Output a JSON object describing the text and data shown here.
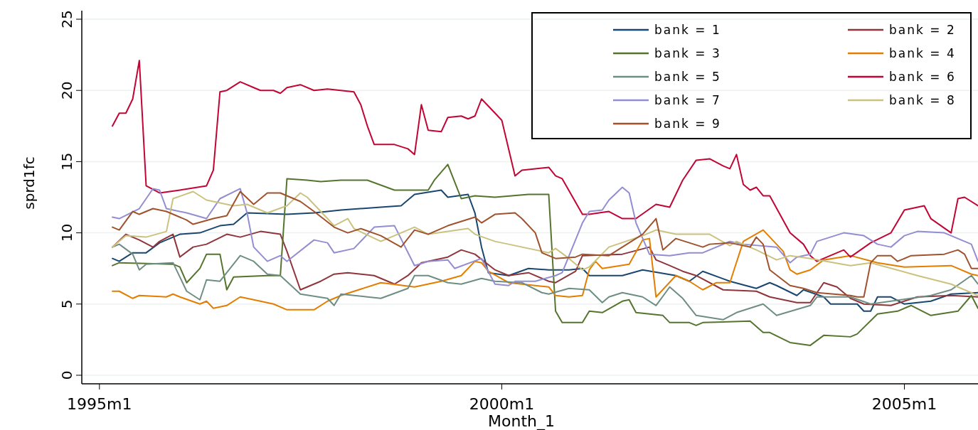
{
  "chart_data": {
    "type": "line",
    "xlabel": "Month_1",
    "ylabel": "sprd1fc",
    "xlim": [
      "1994-10-13",
      "2005-12"
    ],
    "xticks": [
      {
        "value": "1995-01",
        "label": "1995m1"
      },
      {
        "value": "2000-01",
        "label": "2000m1"
      },
      {
        "value": "2005-01",
        "label": "2005m1"
      }
    ],
    "ylim": [
      -0.6,
      25.6
    ],
    "yticks": [
      0,
      5,
      10,
      15,
      20,
      25
    ],
    "grid": "y",
    "legend": "top right",
    "series": [
      {
        "name": "bank = 1",
        "color": "#1a476f",
        "x": [
          "1995-03",
          "1995-04",
          "1995-06",
          "1995-08",
          "1995-10",
          "1996-01",
          "1996-04",
          "1996-07",
          "1996-09",
          "1996-11",
          "1997-05",
          "1997-09",
          "1998-01",
          "1998-07",
          "1998-10",
          "1998-12",
          "1999-04",
          "1999-05",
          "1999-08",
          "1999-09",
          "1999-10",
          "1999-11",
          "2000-02",
          "2000-05",
          "2000-08",
          "2000-11",
          "2001-01",
          "2001-02",
          "2001-07",
          "2001-10",
          "2002-03",
          "2002-05",
          "2002-07",
          "2002-11",
          "2003-03",
          "2003-05",
          "2003-06",
          "2003-09",
          "2003-10",
          "2004-01",
          "2004-02",
          "2004-06",
          "2004-07",
          "2004-08",
          "2004-09",
          "2004-11",
          "2005-01",
          "2005-05",
          "2005-08",
          "2005-12"
        ],
        "values": [
          8.2,
          8.0,
          8.6,
          8.6,
          9.3,
          9.9,
          10.0,
          10.5,
          10.6,
          11.4,
          11.3,
          11.4,
          11.6,
          11.8,
          11.9,
          12.7,
          13.0,
          12.5,
          12.7,
          11.4,
          9.0,
          7.2,
          7.0,
          7.5,
          7.4,
          7.4,
          7.5,
          7.0,
          7.0,
          7.4,
          7.0,
          6.6,
          7.3,
          6.6,
          6.1,
          6.5,
          6.3,
          5.6,
          6.0,
          5.5,
          5.0,
          5.0,
          4.5,
          4.5,
          5.5,
          5.5,
          5.0,
          5.2,
          5.7,
          5.8
        ]
      },
      {
        "name": "bank = 2",
        "color": "#90353b",
        "x": [
          "1995-03",
          "1995-05",
          "1995-07",
          "1995-09",
          "1995-10",
          "1995-12",
          "1996-01",
          "1996-03",
          "1996-05",
          "1996-08",
          "1996-10",
          "1997-01",
          "1997-04",
          "1997-05",
          "1997-07",
          "1997-10",
          "1997-12",
          "1998-02",
          "1998-06",
          "1998-09",
          "1998-11",
          "1999-01",
          "1999-05",
          "1999-07",
          "1999-09",
          "1999-12",
          "2000-02",
          "2000-05",
          "2000-08",
          "2000-09",
          "2000-12",
          "2001-01",
          "2001-07",
          "2001-11",
          "2001-12",
          "2002-02",
          "2002-04",
          "2002-06",
          "2002-10",
          "2003-03",
          "2003-05",
          "2003-09",
          "2003-11",
          "2004-01",
          "2004-03",
          "2004-05",
          "2004-07",
          "2004-11",
          "2005-03",
          "2005-08",
          "2005-12"
        ],
        "values": [
          9.0,
          9.9,
          9.5,
          9.0,
          9.4,
          9.9,
          8.3,
          9.0,
          9.2,
          9.9,
          9.7,
          10.1,
          9.9,
          8.7,
          6.0,
          6.6,
          7.1,
          7.2,
          7.0,
          6.4,
          7.0,
          7.9,
          8.3,
          8.8,
          8.5,
          7.4,
          7.0,
          7.2,
          6.6,
          6.5,
          7.3,
          8.4,
          8.5,
          9.0,
          8.1,
          7.7,
          7.3,
          7.0,
          6.0,
          5.9,
          5.5,
          5.1,
          5.1,
          6.5,
          6.2,
          5.4,
          5.0,
          4.9,
          5.5,
          5.6,
          5.5
        ]
      },
      {
        "name": "bank = 3",
        "color": "#55752f",
        "x": [
          "1995-03",
          "1995-04",
          "1995-12",
          "1996-01",
          "1996-02",
          "1996-04",
          "1996-05",
          "1996-07",
          "1996-08",
          "1996-09",
          "1997-02",
          "1997-04",
          "1997-05",
          "1997-08",
          "1997-10",
          "1998-01",
          "1998-05",
          "1998-09",
          "1999-02",
          "1999-03",
          "1999-05",
          "1999-07",
          "1999-09",
          "1999-12",
          "2000-05",
          "2000-08",
          "2000-09",
          "2000-10",
          "2001-01",
          "2001-02",
          "2001-04",
          "2001-07",
          "2001-08",
          "2001-09",
          "2002-01",
          "2002-02",
          "2002-05",
          "2002-06",
          "2002-07",
          "2003-02",
          "2003-04",
          "2003-05",
          "2003-08",
          "2003-11",
          "2004-01",
          "2004-05",
          "2004-06",
          "2004-09",
          "2004-12",
          "2005-02",
          "2005-05",
          "2005-09",
          "2005-11",
          "2005-12"
        ],
        "values": [
          7.7,
          7.9,
          7.8,
          7.6,
          6.5,
          7.5,
          8.5,
          8.5,
          6.0,
          6.9,
          7.0,
          7.0,
          13.8,
          13.7,
          13.6,
          13.7,
          13.7,
          13.0,
          13.0,
          13.7,
          14.8,
          12.4,
          12.6,
          12.5,
          12.7,
          12.7,
          4.5,
          3.7,
          3.7,
          4.5,
          4.4,
          5.2,
          5.3,
          4.4,
          4.2,
          3.7,
          3.7,
          3.5,
          3.7,
          3.8,
          3.0,
          3.0,
          2.3,
          2.1,
          2.8,
          2.7,
          2.9,
          4.3,
          4.5,
          4.9,
          4.2,
          4.5,
          5.6,
          4.7
        ]
      },
      {
        "name": "bank = 4",
        "color": "#e37e00",
        "x": [
          "1995-03",
          "1995-04",
          "1995-06",
          "1995-07",
          "1995-11",
          "1995-12",
          "1996-01",
          "1996-04",
          "1996-05",
          "1996-06",
          "1996-08",
          "1996-10",
          "1996-12",
          "1997-03",
          "1997-05",
          "1997-09",
          "1997-11",
          "1998-01",
          "1998-07",
          "1998-12",
          "1999-04",
          "1999-07",
          "1999-09",
          "1999-10",
          "1999-11",
          "2000-02",
          "2000-08",
          "2000-09",
          "2000-11",
          "2001-01",
          "2001-02",
          "2001-03",
          "2001-04",
          "2001-08",
          "2001-10",
          "2001-11",
          "2001-12",
          "2002-03",
          "2002-05",
          "2002-07",
          "2002-09",
          "2002-11",
          "2003-01",
          "2003-04",
          "2003-07",
          "2003-08",
          "2003-09",
          "2003-11",
          "2004-01",
          "2004-05",
          "2004-09",
          "2005-01",
          "2005-08",
          "2005-11",
          "2005-12"
        ],
        "values": [
          5.9,
          5.9,
          5.4,
          5.6,
          5.5,
          5.7,
          5.5,
          5.0,
          5.2,
          4.7,
          4.9,
          5.5,
          5.3,
          5.0,
          4.6,
          4.6,
          5.2,
          5.6,
          6.5,
          6.2,
          6.6,
          7.0,
          8.0,
          7.9,
          7.3,
          6.5,
          6.2,
          5.6,
          5.5,
          5.6,
          7.4,
          8.0,
          7.5,
          7.8,
          9.5,
          9.6,
          5.5,
          7.0,
          6.6,
          6.0,
          6.5,
          6.5,
          9.4,
          10.2,
          8.7,
          7.4,
          7.1,
          7.4,
          8.1,
          8.4,
          7.9,
          7.6,
          7.7,
          7.1,
          7.0
        ]
      },
      {
        "name": "bank = 5",
        "color": "#6e8e84",
        "x": [
          "1995-03",
          "1995-04",
          "1995-06",
          "1995-07",
          "1995-08",
          "1995-12",
          "1996-02",
          "1996-04",
          "1996-05",
          "1996-07",
          "1996-10",
          "1996-12",
          "1997-02",
          "1997-04",
          "1997-07",
          "1997-11",
          "1997-12",
          "1998-01",
          "1998-05",
          "1998-07",
          "1998-11",
          "1998-12",
          "1999-02",
          "1999-05",
          "1999-07",
          "1999-10",
          "1999-12",
          "2000-04",
          "2000-07",
          "2000-08",
          "2000-11",
          "2001-02",
          "2001-04",
          "2001-05",
          "2001-07",
          "2001-10",
          "2001-12",
          "2002-02",
          "2002-04",
          "2002-06",
          "2002-10",
          "2002-12",
          "2003-04",
          "2003-06",
          "2003-11",
          "2003-12",
          "2004-05",
          "2004-08",
          "2005-05",
          "2005-08",
          "2005-11",
          "2005-12"
        ],
        "values": [
          9.0,
          9.2,
          8.5,
          7.4,
          7.8,
          7.9,
          5.9,
          5.3,
          6.7,
          6.6,
          8.4,
          8.0,
          7.1,
          7.0,
          5.7,
          5.4,
          4.9,
          5.7,
          5.5,
          5.4,
          6.1,
          7.0,
          7.0,
          6.5,
          6.4,
          6.8,
          6.6,
          6.5,
          5.8,
          5.7,
          6.1,
          6.0,
          5.1,
          5.5,
          5.8,
          5.5,
          4.9,
          6.2,
          5.4,
          4.2,
          3.9,
          4.4,
          5.0,
          4.2,
          4.9,
          5.5,
          5.5,
          5.0,
          5.6,
          6.0,
          7.0,
          6.4
        ]
      },
      {
        "name": "bank = 6",
        "color": "#c10534",
        "x": [
          "1995-03",
          "1995-04",
          "1995-05",
          "1995-06",
          "1995-07",
          "1995-08",
          "1995-10",
          "1996-01",
          "1996-05",
          "1996-06",
          "1996-07",
          "1996-08",
          "1996-10",
          "1996-12",
          "1997-01",
          "1997-03",
          "1997-04",
          "1997-05",
          "1997-07",
          "1997-09",
          "1997-11",
          "1998-03",
          "1998-04",
          "1998-05",
          "1998-06",
          "1998-09",
          "1998-11",
          "1998-12",
          "1999-01",
          "1999-02",
          "1999-04",
          "1999-05",
          "1999-07",
          "1999-08",
          "1999-09",
          "1999-10",
          "1999-11",
          "2000-01",
          "2000-03",
          "2000-04",
          "2000-08",
          "2000-09",
          "2000-10",
          "2001-01",
          "2001-02",
          "2001-05",
          "2001-07",
          "2001-09",
          "2001-12",
          "2002-02",
          "2002-04",
          "2002-06",
          "2002-08",
          "2002-10",
          "2002-11",
          "2002-12",
          "2003-01",
          "2003-02",
          "2003-03",
          "2003-04",
          "2003-05",
          "2003-08",
          "2003-10",
          "2003-11",
          "2003-12",
          "2004-04",
          "2004-05",
          "2004-08",
          "2004-11",
          "2005-01",
          "2005-04",
          "2005-05",
          "2005-08",
          "2005-09",
          "2005-10",
          "2005-12"
        ],
        "values": [
          17.5,
          18.4,
          18.4,
          19.4,
          22.1,
          13.3,
          12.8,
          13.0,
          13.3,
          14.4,
          19.9,
          20.0,
          20.6,
          20.2,
          20.0,
          20.0,
          19.8,
          20.2,
          20.4,
          20.0,
          20.1,
          19.9,
          19.0,
          17.5,
          16.2,
          16.2,
          15.9,
          15.5,
          19.0,
          17.2,
          17.1,
          18.1,
          18.2,
          18.0,
          18.2,
          19.4,
          18.9,
          17.9,
          14.0,
          14.4,
          14.6,
          14.0,
          13.8,
          11.3,
          11.3,
          11.5,
          11.0,
          11.0,
          12.0,
          11.8,
          13.7,
          15.1,
          15.2,
          14.7,
          14.5,
          15.5,
          13.4,
          13.0,
          13.2,
          12.6,
          12.6,
          10.0,
          9.2,
          8.4,
          8.0,
          8.8,
          8.3,
          9.3,
          10.0,
          11.6,
          11.9,
          11.0,
          10.0,
          12.4,
          12.5,
          11.9
        ]
      },
      {
        "name": "bank = 7",
        "color": "#938dd2",
        "x": [
          "1995-03",
          "1995-04",
          "1995-07",
          "1995-09",
          "1995-10",
          "1995-11",
          "1996-02",
          "1996-05",
          "1996-07",
          "1996-10",
          "1996-11",
          "1996-12",
          "1997-02",
          "1997-04",
          "1997-05",
          "1997-09",
          "1997-11",
          "1997-12",
          "1998-03",
          "1998-06",
          "1998-09",
          "1998-12",
          "1999-02",
          "1999-05",
          "1999-06",
          "1999-10",
          "1999-12",
          "2000-02",
          "2000-03",
          "2000-06",
          "2000-09",
          "2000-10",
          "2001-01",
          "2001-02",
          "2001-04",
          "2001-05",
          "2001-07",
          "2001-08",
          "2001-09",
          "2001-11",
          "2002-02",
          "2002-05",
          "2002-07",
          "2002-11",
          "2003-01",
          "2003-06",
          "2003-08",
          "2003-09",
          "2003-11",
          "2003-12",
          "2004-04",
          "2004-07",
          "2004-09",
          "2004-11",
          "2005-01",
          "2005-03",
          "2005-07",
          "2005-11",
          "2005-12"
        ],
        "values": [
          11.1,
          11.0,
          11.7,
          13.1,
          13.0,
          11.7,
          11.4,
          11.0,
          12.4,
          13.1,
          11.4,
          9.0,
          8.0,
          8.4,
          8.0,
          9.5,
          9.3,
          8.6,
          8.9,
          10.4,
          10.5,
          7.7,
          8.0,
          8.1,
          7.5,
          8.2,
          6.4,
          6.3,
          6.6,
          6.6,
          7.0,
          7.2,
          10.7,
          11.5,
          11.6,
          12.3,
          13.2,
          12.8,
          10.7,
          8.5,
          8.4,
          8.6,
          8.6,
          9.4,
          9.2,
          9.0,
          7.9,
          8.3,
          8.5,
          9.4,
          10.0,
          9.8,
          9.2,
          9.0,
          9.8,
          10.1,
          10.0,
          9.2,
          8.0
        ]
      },
      {
        "name": "bank = 8",
        "color": "#cac27e",
        "x": [
          "1995-03",
          "1995-05",
          "1995-08",
          "1995-11",
          "1995-12",
          "1996-03",
          "1996-05",
          "1996-09",
          "1996-11",
          "1997-02",
          "1997-05",
          "1997-07",
          "1997-08",
          "1997-11",
          "1997-12",
          "1998-02",
          "1998-03",
          "1998-07",
          "1998-10",
          "1998-12",
          "1999-02",
          "1999-08",
          "1999-09",
          "1999-12",
          "2000-02",
          "2000-08",
          "2000-09",
          "2000-11",
          "2001-01",
          "2001-02",
          "2001-05",
          "2001-10",
          "2001-12",
          "2002-03",
          "2002-08",
          "2002-11",
          "2002-12",
          "2003-03",
          "2003-06",
          "2003-08",
          "2003-11",
          "2004-05",
          "2004-08",
          "2005-03",
          "2005-08",
          "2005-12"
        ],
        "values": [
          9.0,
          9.8,
          9.7,
          10.1,
          12.4,
          12.9,
          12.3,
          11.9,
          12.0,
          11.4,
          11.9,
          12.8,
          12.5,
          11.0,
          10.5,
          11.0,
          10.3,
          9.4,
          10.0,
          10.4,
          9.9,
          10.3,
          9.9,
          9.4,
          9.2,
          8.6,
          8.9,
          8.2,
          7.4,
          7.6,
          9.0,
          9.8,
          10.2,
          9.9,
          9.9,
          9.1,
          9.4,
          8.8,
          8.1,
          8.4,
          8.2,
          7.7,
          7.9,
          7.0,
          6.4,
          5.6
        ]
      },
      {
        "name": "bank = 9",
        "color": "#a0522d",
        "x": [
          "1995-03",
          "1995-04",
          "1995-06",
          "1995-07",
          "1995-09",
          "1995-11",
          "1996-02",
          "1996-03",
          "1996-06",
          "1996-08",
          "1996-10",
          "1996-12",
          "1997-02",
          "1997-04",
          "1997-07",
          "1997-09",
          "1997-12",
          "1998-02",
          "1998-04",
          "1998-07",
          "1998-10",
          "1998-12",
          "1999-02",
          "1999-05",
          "1999-09",
          "1999-10",
          "1999-12",
          "2000-03",
          "2000-04",
          "2000-06",
          "2000-07",
          "2000-09",
          "2000-12",
          "2001-01",
          "2001-05",
          "2001-10",
          "2001-12",
          "2002-01",
          "2002-03",
          "2002-05",
          "2002-07",
          "2002-08",
          "2002-11",
          "2003-02",
          "2003-03",
          "2003-04",
          "2003-05",
          "2003-08",
          "2003-10",
          "2003-12",
          "2004-05",
          "2004-06",
          "2004-07",
          "2004-08",
          "2004-09",
          "2004-11",
          "2004-12",
          "2005-02",
          "2005-07",
          "2005-09",
          "2005-10",
          "2005-11",
          "2005-12"
        ],
        "values": [
          10.4,
          10.2,
          11.5,
          11.3,
          11.7,
          11.5,
          10.9,
          10.6,
          11.0,
          11.2,
          12.9,
          12.0,
          12.8,
          12.8,
          12.2,
          11.5,
          10.4,
          10.0,
          10.3,
          9.8,
          9.0,
          10.2,
          9.9,
          10.5,
          11.1,
          10.7,
          11.3,
          11.4,
          11.0,
          10.0,
          8.6,
          8.2,
          8.3,
          8.5,
          8.4,
          9.9,
          11.0,
          8.8,
          9.6,
          9.3,
          9.0,
          9.2,
          9.3,
          9.0,
          9.7,
          9.2,
          7.4,
          6.3,
          6.1,
          5.8,
          5.6,
          5.5,
          5.5,
          7.9,
          8.4,
          8.4,
          8.0,
          8.4,
          8.5,
          8.8,
          8.5,
          7.5,
          7.5
        ]
      }
    ]
  }
}
